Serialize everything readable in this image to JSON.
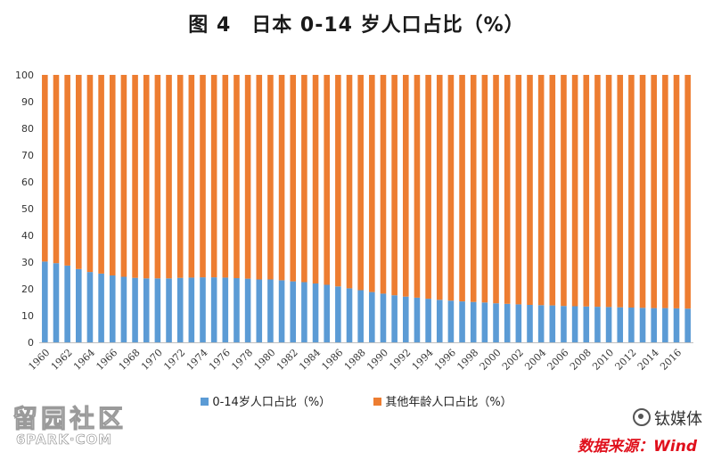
{
  "chart_data": {
    "type": "bar",
    "stacked": true,
    "title": "图 4　日本 0-14 岁人口占比（%）",
    "x": [
      1960,
      1961,
      1962,
      1963,
      1964,
      1965,
      1966,
      1967,
      1968,
      1969,
      1970,
      1971,
      1972,
      1973,
      1974,
      1975,
      1976,
      1977,
      1978,
      1979,
      1980,
      1981,
      1982,
      1983,
      1984,
      1985,
      1986,
      1987,
      1988,
      1989,
      1990,
      1991,
      1992,
      1993,
      1994,
      1995,
      1996,
      1997,
      1998,
      1999,
      2000,
      2001,
      2002,
      2003,
      2004,
      2005,
      2006,
      2007,
      2008,
      2009,
      2010,
      2011,
      2012,
      2013,
      2014,
      2015,
      2016,
      2017
    ],
    "tick_labels": [
      "1960",
      "1962",
      "1964",
      "1966",
      "1968",
      "1970",
      "1972",
      "1974",
      "1976",
      "1978",
      "1980",
      "1982",
      "1984",
      "1986",
      "1988",
      "1990",
      "1992",
      "1994",
      "1996",
      "1998",
      "2000",
      "2002",
      "2004",
      "2006",
      "2008",
      "2010",
      "2012",
      "2014",
      "2016"
    ],
    "series": [
      {
        "name": "0-14岁人口占比（%）",
        "color": "#5b9bd5",
        "values": [
          30.2,
          29.6,
          28.7,
          27.4,
          26.3,
          25.7,
          25.0,
          24.5,
          24.1,
          23.9,
          23.9,
          23.9,
          24.1,
          24.2,
          24.3,
          24.3,
          24.2,
          24.0,
          23.8,
          23.5,
          23.5,
          23.2,
          22.8,
          22.5,
          22.0,
          21.5,
          20.9,
          20.2,
          19.5,
          18.8,
          18.2,
          17.6,
          17.1,
          16.7,
          16.3,
          15.9,
          15.6,
          15.3,
          15.1,
          14.9,
          14.6,
          14.4,
          14.2,
          14.0,
          13.9,
          13.8,
          13.6,
          13.5,
          13.4,
          13.3,
          13.2,
          13.1,
          13.0,
          12.9,
          12.8,
          12.8,
          12.7,
          12.6
        ]
      },
      {
        "name": "其他年龄人口占比（%）",
        "color": "#ed7d31",
        "values": [
          69.8,
          70.4,
          71.3,
          72.6,
          73.7,
          74.3,
          75.0,
          75.5,
          75.9,
          76.1,
          76.1,
          76.1,
          75.9,
          75.8,
          75.7,
          75.7,
          75.8,
          76.0,
          76.2,
          76.5,
          76.5,
          76.8,
          77.2,
          77.5,
          78.0,
          78.5,
          79.1,
          79.8,
          80.5,
          81.2,
          81.8,
          82.4,
          82.9,
          83.3,
          83.7,
          84.1,
          84.4,
          84.7,
          84.9,
          85.1,
          85.4,
          85.6,
          85.8,
          86.0,
          86.1,
          86.2,
          86.4,
          86.5,
          86.6,
          86.7,
          86.8,
          86.9,
          87.0,
          87.1,
          87.2,
          87.2,
          87.3,
          87.4
        ]
      }
    ],
    "ylim": [
      0,
      100
    ],
    "yticks": [
      0,
      10,
      20,
      30,
      40,
      50,
      60,
      70,
      80,
      90,
      100
    ],
    "xlabel": "",
    "ylabel": "",
    "grid": false,
    "legend": "bottom"
  },
  "watermarks": {
    "left_top": "留园社区",
    "left_bottom": "6PARK·COM",
    "right_top": "钛媒体",
    "right_bottom": "数据来源：Wind"
  }
}
